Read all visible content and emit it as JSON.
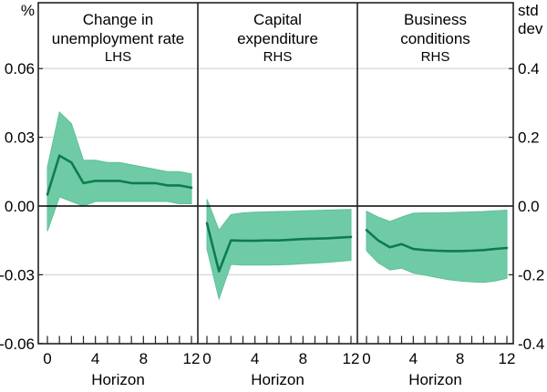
{
  "colors": {
    "band": "#6FCBA6",
    "band_edge": "#5FC09A",
    "line": "#0E7B4F",
    "grid": "#D9D9D9",
    "axis": "#222222",
    "zero_line": "#000000",
    "text": "#000000"
  },
  "chart_data": {
    "type": "area",
    "description": "Three-panel impulse-response fan chart: dark green median line with shaded confidence band",
    "x": [
      0,
      1,
      2,
      3,
      4,
      5,
      6,
      7,
      8,
      9,
      10,
      11,
      12
    ],
    "x_ticks": [
      0,
      4,
      8,
      12
    ],
    "xlabel": "Horizon",
    "grid": true,
    "left_axis": {
      "unit": "%",
      "tick_labels": [
        "0.06",
        "0.03",
        "0.00",
        "-0.03",
        "-0.06"
      ],
      "tick_values": [
        0.06,
        0.03,
        0.0,
        -0.03,
        -0.06
      ],
      "lim": [
        -0.06,
        0.06
      ]
    },
    "right_axis": {
      "unit": "std dev",
      "unit_lines": [
        "std",
        "dev"
      ],
      "tick_labels": [
        "0.4",
        "0.2",
        "0.0",
        "-0.2",
        "-0.4"
      ],
      "tick_values": [
        0.4,
        0.2,
        0.0,
        -0.2,
        -0.4
      ],
      "lim": [
        -0.4,
        0.4
      ]
    },
    "panels": [
      {
        "title_lines": [
          "Change in",
          "unemployment rate"
        ],
        "tag": "LHS",
        "scale": "lhs",
        "center": [
          0.005,
          0.022,
          0.019,
          0.01,
          0.011,
          0.011,
          0.011,
          0.01,
          0.01,
          0.01,
          0.009,
          0.009,
          0.008
        ],
        "upper": [
          0.017,
          0.041,
          0.036,
          0.02,
          0.02,
          0.019,
          0.019,
          0.018,
          0.017,
          0.016,
          0.015,
          0.015,
          0.014
        ],
        "lower": [
          -0.011,
          0.004,
          0.002,
          0.0,
          0.002,
          0.002,
          0.002,
          0.002,
          0.002,
          0.002,
          0.002,
          0.001,
          0.001
        ]
      },
      {
        "title_lines": [
          "Capital",
          "expenditure"
        ],
        "tag": "RHS",
        "scale": "rhs",
        "center": [
          -0.05,
          -0.19,
          -0.1,
          -0.101,
          -0.101,
          -0.1,
          -0.1,
          -0.098,
          -0.096,
          -0.095,
          -0.094,
          -0.092,
          -0.09
        ],
        "upper": [
          0.02,
          -0.07,
          -0.025,
          -0.02,
          -0.018,
          -0.017,
          -0.016,
          -0.015,
          -0.014,
          -0.013,
          -0.012,
          -0.011,
          -0.01
        ],
        "lower": [
          -0.125,
          -0.27,
          -0.17,
          -0.172,
          -0.172,
          -0.172,
          -0.171,
          -0.17,
          -0.168,
          -0.166,
          -0.164,
          -0.161,
          -0.158
        ]
      },
      {
        "title_lines": [
          "Business",
          "conditions"
        ],
        "tag": "RHS",
        "scale": "rhs",
        "center": [
          -0.07,
          -0.1,
          -0.12,
          -0.111,
          -0.125,
          -0.128,
          -0.13,
          -0.131,
          -0.131,
          -0.13,
          -0.128,
          -0.125,
          -0.122
        ],
        "upper": [
          -0.015,
          -0.032,
          -0.045,
          -0.032,
          -0.021,
          -0.02,
          -0.02,
          -0.019,
          -0.018,
          -0.017,
          -0.016,
          -0.014,
          -0.012
        ],
        "lower": [
          -0.13,
          -0.165,
          -0.186,
          -0.181,
          -0.195,
          -0.201,
          -0.208,
          -0.214,
          -0.218,
          -0.221,
          -0.222,
          -0.218,
          -0.21
        ]
      }
    ]
  }
}
